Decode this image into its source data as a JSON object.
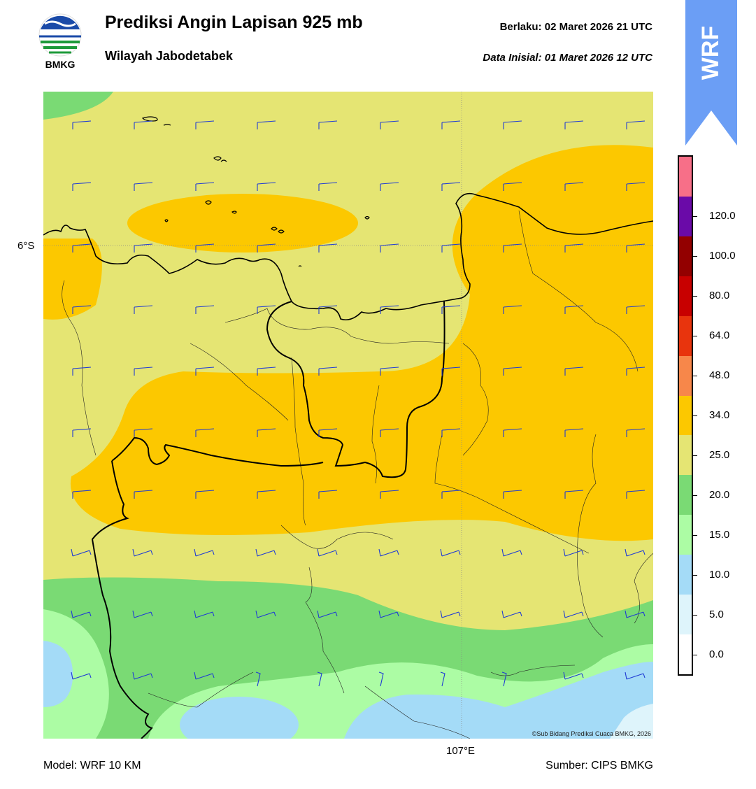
{
  "header": {
    "title": "Prediksi Angin Lapisan 925 mb",
    "subtitle": "Wilayah Jabodetabek",
    "valid_label": "Berlaku:  02 Maret 2026 21 UTC",
    "init_label": "Data Inisial:  01 Maret 2026 12 UTC"
  },
  "logo": {
    "text": "BMKG",
    "icon": "bmkg-logo-icon"
  },
  "badge": {
    "text": "WRF",
    "color": "#6b9ef5"
  },
  "axes": {
    "lat_label": "6°S",
    "lon_label": "107°E"
  },
  "footer": {
    "model": "Model: WRF 10 KM",
    "source": "Sumber: CIPS BMKG",
    "credit": "©Sub Bidang Prediksi Cuaca BMKG, 2026"
  },
  "colorbar": {
    "ticks": [
      "0.0",
      "5.0",
      "10.0",
      "15.0",
      "20.0",
      "25.0",
      "34.0",
      "48.0",
      "64.0",
      "80.0",
      "100.0",
      "120.0"
    ],
    "colors": [
      "#ffffff",
      "#def4fb",
      "#a4dbf7",
      "#acfca4",
      "#7ada74",
      "#e5e573",
      "#fcc800",
      "#f7874a",
      "#e8340d",
      "#c80000",
      "#930000",
      "#6a0aa8",
      "#f76f88"
    ]
  },
  "map_colors": {
    "level_5_10": "#a4dbf7",
    "level_10_15": "#acfca4",
    "level_15_20": "#7ada74",
    "level_20_25": "#e5e573",
    "level_25_34": "#fcc800",
    "barb": "#1f3bd4",
    "coast": "#000000"
  }
}
